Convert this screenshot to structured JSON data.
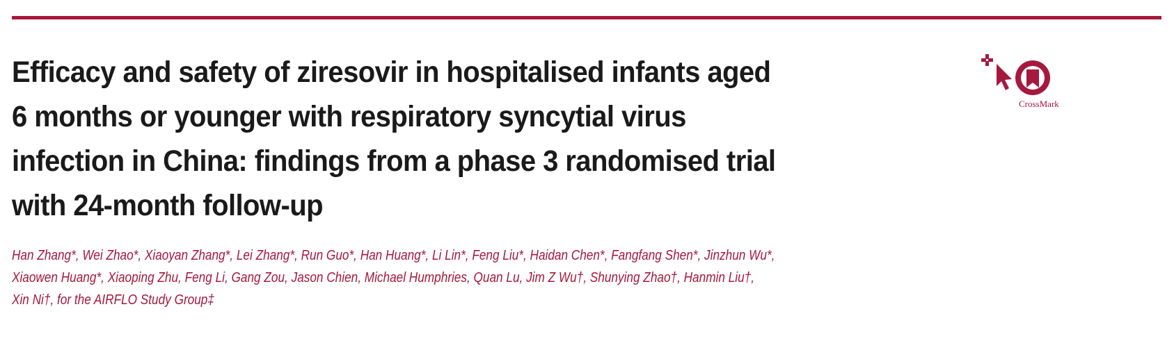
{
  "accent_color": "#a6193e",
  "title_lines": [
    "Efficacy and safety of ziresovir in hospitalised infants aged",
    "6 months or younger with respiratory syncytial virus",
    "infection in China: findings from a phase 3 randomised trial",
    "with 24-month follow-up"
  ],
  "author_lines": [
    "Han Zhang*, Wei Zhao*, Xiaoyan Zhang*, Lei Zhang*, Run Guo*, Han Huang*, Li Lin*, Feng Liu*, Haidan Chen*, Fangfang Shen*, Jinzhun Wu*,",
    "Xiaowen Huang*, Xiaoping Zhu, Feng Li, Gang Zou, Jason Chien, Michael Humphries, Quan Lu, Jim Z Wu†, Shunying Zhao†, Hanmin Liu†,",
    "Xin Ni†, for the AIRFLO Study Group‡"
  ],
  "crossmark": {
    "label": "CrossMark",
    "icons": [
      "plus-cursor-icon",
      "crossmark-logo-icon"
    ]
  }
}
